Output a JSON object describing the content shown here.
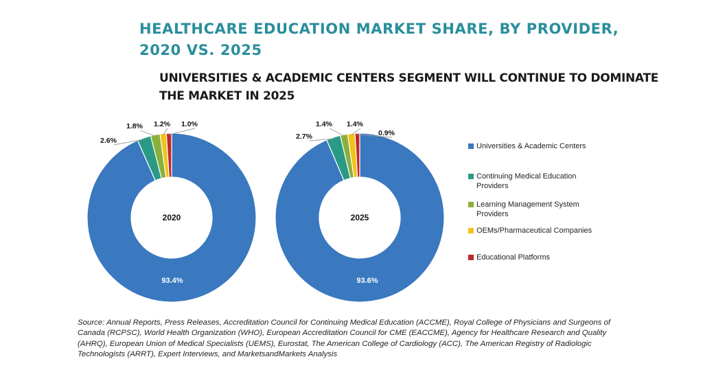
{
  "title": {
    "line1": "HEALTHCARE EDUCATION MARKET SHARE, BY PROVIDER,",
    "line2": "2020 VS. 2025"
  },
  "subtitle": {
    "line1": "UNIVERSITIES & ACADEMIC CENTERS SEGMENT WILL CONTINUE TO DOMINATE",
    "line2": "THE MARKET IN 2025"
  },
  "legend": [
    {
      "label": "Universities & Academic Centers",
      "color": "#3a78bf"
    },
    {
      "label": "Continuing Medical Education Providers",
      "color": "#2a9a86"
    },
    {
      "label": "Learning Management System Providers",
      "color": "#8ab03c"
    },
    {
      "label": "OEMs/Pharmaceutical Companies",
      "color": "#f2c318"
    },
    {
      "label": "Educational Platforms",
      "color": "#c0282d"
    }
  ],
  "chart_data": [
    {
      "type": "pie",
      "center_label": "2020",
      "categories": [
        "Universities & Academic Centers",
        "Continuing Medical Education Providers",
        "Learning Management System Providers",
        "OEMs/Pharmaceutical Companies",
        "Educational Platforms"
      ],
      "values": [
        93.4,
        2.6,
        1.8,
        1.2,
        1.0
      ],
      "labels": [
        "93.4%",
        "2.6%",
        "1.8%",
        "1.2%",
        "1.0%"
      ],
      "colors": [
        "#3a78bf",
        "#2a9a86",
        "#8ab03c",
        "#f2c318",
        "#c0282d"
      ]
    },
    {
      "type": "pie",
      "center_label": "2025",
      "categories": [
        "Universities & Academic Centers",
        "Continuing Medical Education Providers",
        "Learning Management System Providers",
        "OEMs/Pharmaceutical Companies",
        "Educational Platforms"
      ],
      "values": [
        93.6,
        2.7,
        1.4,
        1.4,
        0.9
      ],
      "labels": [
        "93.6%",
        "2.7%",
        "1.4%",
        "1.4%",
        "0.9%"
      ],
      "colors": [
        "#3a78bf",
        "#2a9a86",
        "#8ab03c",
        "#f2c318",
        "#c0282d"
      ]
    }
  ],
  "source": "Source: Annual Reports, Press Releases, Accreditation Council for Continuing Medical Education (ACCME), Royal College of Physicians and Surgeons of Canada (RCPSC), World Health Organization (WHO), European Accreditation Council for CME (EACCME), Agency for Healthcare Research and Quality (AHRQ), European Union of Medical Specialists (UEMS), Eurostat, The American College of Cardiology (ACC), The American Registry of Radiologic Technologists (ARRT), Expert Interviews, and MarketsandMarkets Analysis"
}
